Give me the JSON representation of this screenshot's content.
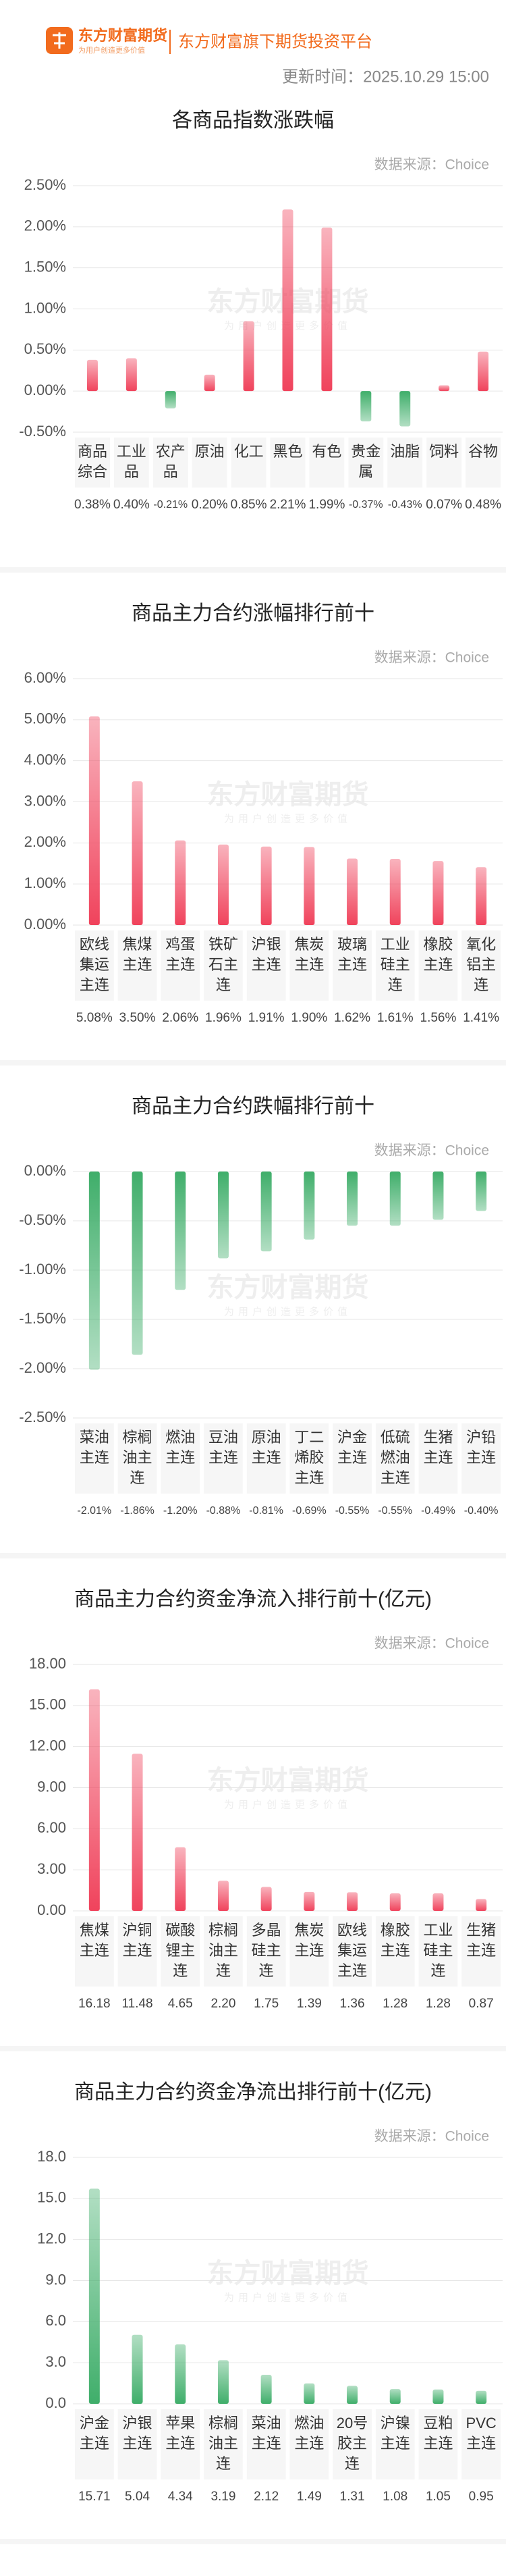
{
  "header": {
    "brand": "东方财富期货",
    "slogan": "为用户创造更多价值",
    "platform": "东方财富旗下期货投资平台",
    "update_time": "更新时间：2025.10.29 15:00"
  },
  "watermark": {
    "text": "东方财富期货",
    "sub": "为用户创造更多价值"
  },
  "chart_data": [
    {
      "type": "bar",
      "title": "各商品指数涨跌幅",
      "source": "数据来源：Choice",
      "categories": [
        "商品综合",
        "工业品",
        "农产品",
        "原油",
        "化工",
        "黑色",
        "有色",
        "贵金属",
        "油脂",
        "饲料",
        "谷物"
      ],
      "values": [
        0.38,
        0.4,
        -0.21,
        0.2,
        0.85,
        2.21,
        1.99,
        -0.37,
        -0.43,
        0.07,
        0.48
      ],
      "value_labels": [
        "0.38%",
        "0.40%",
        "-0.21%",
        "0.20%",
        "0.85%",
        "2.21%",
        "1.99%",
        "-0.37%",
        "-0.43%",
        "0.07%",
        "0.48%"
      ],
      "color": "#f0435c",
      "negative_color": "#3fae6a",
      "ylim": [
        -0.5,
        2.5
      ],
      "yticks": [
        {
          "value": -0.5,
          "label": "-0.50%"
        },
        {
          "value": 0,
          "label": "0.00%"
        },
        {
          "value": 0.5,
          "label": "0.50%"
        },
        {
          "value": 1,
          "label": "1.00%"
        },
        {
          "value": 1.5,
          "label": "1.50%"
        },
        {
          "value": 2,
          "label": "2.00%"
        },
        {
          "value": 2.5,
          "label": "2.50%"
        }
      ],
      "grid": true
    },
    {
      "type": "bar",
      "title": "商品主力合约涨幅排行前十",
      "source": "数据来源：Choice",
      "categories": [
        "欧线集运主连",
        "焦煤主连",
        "鸡蛋主连",
        "铁矿石主连",
        "沪银主连",
        "焦炭主连",
        "玻璃主连",
        "工业硅主连",
        "橡胶主连",
        "氧化铝主连"
      ],
      "values": [
        5.08,
        3.5,
        2.06,
        1.96,
        1.91,
        1.9,
        1.62,
        1.61,
        1.56,
        1.41
      ],
      "value_labels": [
        "5.08%",
        "3.50%",
        "2.06%",
        "1.96%",
        "1.91%",
        "1.90%",
        "1.62%",
        "1.61%",
        "1.56%",
        "1.41%"
      ],
      "color": "#f0435c",
      "negative_color": "#3fae6a",
      "ylim": [
        0,
        6
      ],
      "yticks": [
        {
          "value": 0,
          "label": "0.00%"
        },
        {
          "value": 1,
          "label": "1.00%"
        },
        {
          "value": 2,
          "label": "2.00%"
        },
        {
          "value": 3,
          "label": "3.00%"
        },
        {
          "value": 4,
          "label": "4.00%"
        },
        {
          "value": 5,
          "label": "5.00%"
        },
        {
          "value": 6,
          "label": "6.00%"
        }
      ],
      "grid": true
    },
    {
      "type": "bar",
      "title": "商品主力合约跌幅排行前十",
      "source": "数据来源：Choice",
      "categories": [
        "菜油主连",
        "棕榈油主连",
        "燃油主连",
        "豆油主连",
        "原油主连",
        "丁二烯胶主连",
        "沪金主连",
        "低硫燃油主连",
        "生猪主连",
        "沪铅主连"
      ],
      "values": [
        -2.01,
        -1.86,
        -1.2,
        -0.88,
        -0.81,
        -0.69,
        -0.55,
        -0.55,
        -0.49,
        -0.4
      ],
      "value_labels": [
        "-2.01%",
        "-1.86%",
        "-1.20%",
        "-0.88%",
        "-0.81%",
        "-0.69%",
        "-0.55%",
        "-0.55%",
        "-0.49%",
        "-0.40%"
      ],
      "color": "#f0435c",
      "negative_color": "#3fae6a",
      "ylim": [
        -2.5,
        0
      ],
      "yticks": [
        {
          "value": -2.5,
          "label": "-2.50%"
        },
        {
          "value": -2,
          "label": "-2.00%"
        },
        {
          "value": -1.5,
          "label": "-1.50%"
        },
        {
          "value": -1,
          "label": "-1.00%"
        },
        {
          "value": -0.5,
          "label": "-0.50%"
        },
        {
          "value": 0,
          "label": "0.00%"
        }
      ],
      "grid": true
    },
    {
      "type": "bar",
      "title": "商品主力合约资金净流入排行前十(亿元)",
      "source": "数据来源：Choice",
      "categories": [
        "焦煤主连",
        "沪铜主连",
        "碳酸锂主连",
        "棕榈油主连",
        "多晶硅主连",
        "焦炭主连",
        "欧线集运主连",
        "橡胶主连",
        "工业硅主连",
        "生猪主连"
      ],
      "values": [
        16.18,
        11.48,
        4.65,
        2.2,
        1.75,
        1.39,
        1.36,
        1.28,
        1.28,
        0.87
      ],
      "value_labels": [
        "16.18",
        "11.48",
        "4.65",
        "2.20",
        "1.75",
        "1.39",
        "1.36",
        "1.28",
        "1.28",
        "0.87"
      ],
      "color": "#f0435c",
      "negative_color": "#3fae6a",
      "ylim": [
        0,
        18
      ],
      "yticks": [
        {
          "value": 0,
          "label": "0.00"
        },
        {
          "value": 3,
          "label": "3.00"
        },
        {
          "value": 6,
          "label": "6.00"
        },
        {
          "value": 9,
          "label": "9.00"
        },
        {
          "value": 12,
          "label": "12.00"
        },
        {
          "value": 15,
          "label": "15.00"
        },
        {
          "value": 18,
          "label": "18.00"
        }
      ],
      "grid": true
    },
    {
      "type": "bar",
      "title": "商品主力合约资金净流出排行前十(亿元)",
      "source": "数据来源：Choice",
      "categories": [
        "沪金主连",
        "沪银主连",
        "苹果主连",
        "棕榈油主连",
        "菜油主连",
        "燃油主连",
        "20号胶主连",
        "沪镍主连",
        "豆粕主连",
        "PVC主连"
      ],
      "values": [
        15.71,
        5.04,
        4.34,
        3.19,
        2.12,
        1.49,
        1.31,
        1.08,
        1.05,
        0.95
      ],
      "value_labels": [
        "15.71",
        "5.04",
        "4.34",
        "3.19",
        "2.12",
        "1.49",
        "1.31",
        "1.08",
        "1.05",
        "0.95"
      ],
      "color": "#3fae6a",
      "negative_color": "#3fae6a",
      "ylim": [
        0,
        18
      ],
      "yticks": [
        {
          "value": 0,
          "label": "0.0"
        },
        {
          "value": 3,
          "label": "3.0"
        },
        {
          "value": 6,
          "label": "6.0"
        },
        {
          "value": 9,
          "label": "9.0"
        },
        {
          "value": 12,
          "label": "12.0"
        },
        {
          "value": 15,
          "label": "15.0"
        },
        {
          "value": 18,
          "label": "18.0"
        }
      ],
      "grid": true
    }
  ]
}
